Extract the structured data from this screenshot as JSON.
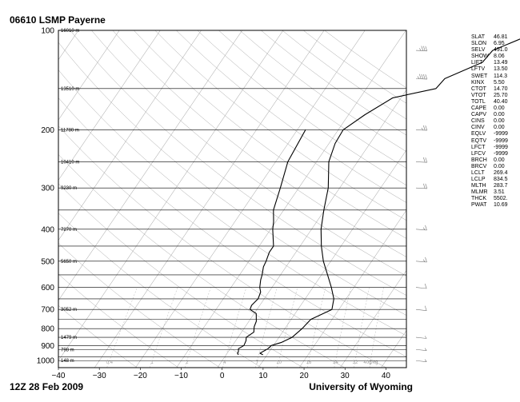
{
  "title": "06610 LSMP Payerne",
  "footer": {
    "date": "12Z 28 Feb 2009",
    "source": "University of Wyoming"
  },
  "chart_data": {
    "type": "line",
    "title": "06610 LSMP Payerne",
    "x_axis": {
      "range": [
        -40,
        45
      ],
      "ticks": [
        "−40",
        "−30",
        "−20",
        "−10",
        "0",
        "10",
        "20",
        "30",
        "40"
      ],
      "tick_values": [
        -40,
        -30,
        -20,
        -10,
        0,
        10,
        20,
        30,
        40
      ]
    },
    "y_axis": {
      "scale": "log",
      "range": [
        1050,
        100
      ],
      "ticks": [
        "100",
        "200",
        "300",
        "400",
        "500",
        "600",
        "700",
        "800",
        "900",
        "1000"
      ],
      "tick_values": [
        100,
        200,
        300,
        400,
        500,
        600,
        700,
        800,
        900,
        1000
      ]
    },
    "extra_isobars": [
      150,
      250,
      350,
      450,
      550,
      650,
      750,
      850,
      925,
      975
    ],
    "height_labels": [
      {
        "p": 100,
        "text": "16010 m"
      },
      {
        "p": 150,
        "text": "13510 m"
      },
      {
        "p": 200,
        "text": "11780 m"
      },
      {
        "p": 250,
        "text": "10410 m"
      },
      {
        "p": 300,
        "text": "9230 m"
      },
      {
        "p": 400,
        "text": "7270 m"
      },
      {
        "p": 500,
        "text": "5650 m"
      },
      {
        "p": 700,
        "text": "3052 m"
      },
      {
        "p": 850,
        "text": "1479 m"
      },
      {
        "p": 925,
        "text": "798 m"
      },
      {
        "p": 1000,
        "text": "148 m"
      }
    ],
    "mixing_ratio_labels": [
      "0.4",
      "1",
      "2",
      "4",
      "7",
      "10",
      "16",
      "24",
      "32",
      "40g/kg"
    ],
    "series": [
      {
        "role": "temperature",
        "points": [
          [
            100,
            20.5
          ],
          [
            105,
            20
          ],
          [
            115,
            14.5
          ],
          [
            125,
            14
          ],
          [
            140,
            7.5
          ],
          [
            150,
            7
          ],
          [
            160,
            -2
          ],
          [
            180,
            -6
          ],
          [
            200,
            -8.8
          ],
          [
            220,
            -8.5
          ],
          [
            250,
            -7
          ],
          [
            300,
            -2.8
          ],
          [
            350,
            -0.2
          ],
          [
            400,
            2.3
          ],
          [
            450,
            5.2
          ],
          [
            500,
            8.2
          ],
          [
            550,
            11.5
          ],
          [
            600,
            14.5
          ],
          [
            650,
            17
          ],
          [
            700,
            18.3
          ],
          [
            750,
            14.8
          ],
          [
            800,
            14.2
          ],
          [
            850,
            13.2
          ],
          [
            880,
            11.5
          ],
          [
            900,
            9.5
          ],
          [
            920,
            9.2
          ],
          [
            950,
            8
          ],
          [
            960,
            9
          ]
        ]
      },
      {
        "role": "dewpoint",
        "points": [
          [
            200,
            -18
          ],
          [
            250,
            -17
          ],
          [
            300,
            -14.5
          ],
          [
            350,
            -12.5
          ],
          [
            380,
            -10.5
          ],
          [
            400,
            -9.5
          ],
          [
            450,
            -6.5
          ],
          [
            470,
            -6.5
          ],
          [
            500,
            -5.8
          ],
          [
            520,
            -5.5
          ],
          [
            550,
            -4.5
          ],
          [
            570,
            -4
          ],
          [
            600,
            -3
          ],
          [
            620,
            -2
          ],
          [
            650,
            -1.5
          ],
          [
            680,
            -2
          ],
          [
            700,
            -1.7
          ],
          [
            720,
            0.5
          ],
          [
            760,
            1.8
          ],
          [
            790,
            2.2
          ],
          [
            820,
            3
          ],
          [
            850,
            2
          ],
          [
            870,
            2.5
          ],
          [
            900,
            2.8
          ],
          [
            920,
            2
          ],
          [
            940,
            2.5
          ],
          [
            950,
            2.5
          ],
          [
            960,
            3
          ]
        ]
      }
    ],
    "grid": true
  },
  "wind_barbs": [
    {
      "p": 115,
      "speed": 35,
      "dir": 280
    },
    {
      "p": 140,
      "speed": 45,
      "dir": 280
    },
    {
      "p": 200,
      "speed": 25,
      "dir": 280
    },
    {
      "p": 250,
      "speed": 20,
      "dir": 280
    },
    {
      "p": 300,
      "speed": 20,
      "dir": 280
    },
    {
      "p": 400,
      "speed": 15,
      "dir": 285
    },
    {
      "p": 500,
      "speed": 15,
      "dir": 285
    },
    {
      "p": 600,
      "speed": 10,
      "dir": 290
    },
    {
      "p": 700,
      "speed": 10,
      "dir": 290
    },
    {
      "p": 850,
      "speed": 5,
      "dir": 290
    },
    {
      "p": 925,
      "speed": 5,
      "dir": 290
    },
    {
      "p": 1000,
      "speed": 5,
      "dir": 290
    }
  ],
  "indices": [
    {
      "k": "SLAT",
      "v": "46.81"
    },
    {
      "k": "SLON",
      "v": "6.95"
    },
    {
      "k": "SELV",
      "v": "491.0"
    },
    {
      "k": "SHOW",
      "v": "8.06"
    },
    {
      "k": "LIFT",
      "v": "13.49"
    },
    {
      "k": "LFTV",
      "v": "13.50"
    },
    {
      "k": "SWET",
      "v": "114.3"
    },
    {
      "k": "KINX",
      "v": "5.50"
    },
    {
      "k": "CTOT",
      "v": "14.70"
    },
    {
      "k": "VTOT",
      "v": "25.70"
    },
    {
      "k": "TOTL",
      "v": "40.40"
    },
    {
      "k": "CAPE",
      "v": "0.00"
    },
    {
      "k": "CAPV",
      "v": "0.00"
    },
    {
      "k": "CINS",
      "v": "0.00"
    },
    {
      "k": "CINV",
      "v": "0.00"
    },
    {
      "k": "EQLV",
      "v": "-9999"
    },
    {
      "k": "EQTV",
      "v": "-9999"
    },
    {
      "k": "LFCT",
      "v": "-9999"
    },
    {
      "k": "LFCV",
      "v": "-9999"
    },
    {
      "k": "BRCH",
      "v": "0.00"
    },
    {
      "k": "BRCV",
      "v": "0.00"
    },
    {
      "k": "LCLT",
      "v": "269.4"
    },
    {
      "k": "LCLP",
      "v": "834.5"
    },
    {
      "k": "MLTH",
      "v": "283.7"
    },
    {
      "k": "MLMR",
      "v": "3.51"
    },
    {
      "k": "THCK",
      "v": "5502."
    },
    {
      "k": "PWAT",
      "v": "10.69"
    }
  ]
}
